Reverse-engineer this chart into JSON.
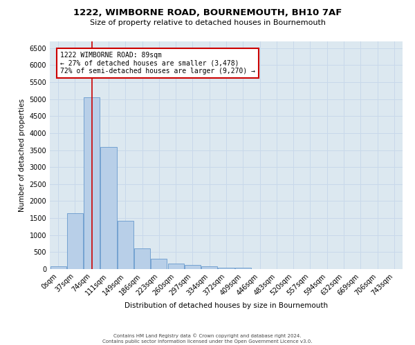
{
  "title": "1222, WIMBORNE ROAD, BOURNEMOUTH, BH10 7AF",
  "subtitle": "Size of property relative to detached houses in Bournemouth",
  "xlabel": "Distribution of detached houses by size in Bournemouth",
  "ylabel": "Number of detached properties",
  "bar_values": [
    75,
    1650,
    5050,
    3600,
    1420,
    600,
    300,
    160,
    120,
    90,
    50,
    50
  ],
  "bar_color": "#b8cfe8",
  "bar_edge_color": "#6699cc",
  "vline_color": "#cc0000",
  "annotation_text": "1222 WIMBORNE ROAD: 89sqm\n← 27% of detached houses are smaller (3,478)\n72% of semi-detached houses are larger (9,270) →",
  "annotation_box_color": "#ffffff",
  "annotation_box_edge_color": "#cc0000",
  "ylim": [
    0,
    6700
  ],
  "yticks": [
    0,
    500,
    1000,
    1500,
    2000,
    2500,
    3000,
    3500,
    4000,
    4500,
    5000,
    5500,
    6000,
    6500
  ],
  "all_xtick_labels": [
    "0sqm",
    "37sqm",
    "74sqm",
    "111sqm",
    "149sqm",
    "186sqm",
    "223sqm",
    "260sqm",
    "297sqm",
    "334sqm",
    "372sqm",
    "409sqm",
    "446sqm",
    "483sqm",
    "520sqm",
    "557sqm",
    "594sqm",
    "632sqm",
    "669sqm",
    "706sqm",
    "743sqm"
  ],
  "grid_color": "#c8d8ea",
  "background_color": "#dce8f0",
  "fig_background": "#ffffff",
  "footer_line1": "Contains HM Land Registry data © Crown copyright and database right 2024.",
  "footer_line2": "Contains public sector information licensed under the Open Government Licence v3.0."
}
